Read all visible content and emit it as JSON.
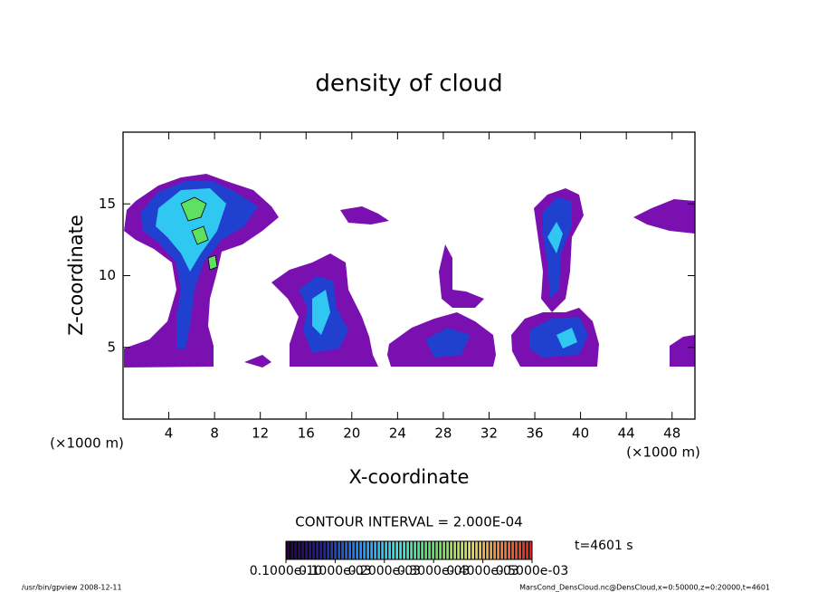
{
  "chart_data": {
    "type": "contour",
    "title": "density of cloud",
    "x_label": "X-coordinate",
    "y_label": "Z-coordinate",
    "x_unit": "(×1000 m)",
    "y_unit": "(×1000 m)",
    "xlim": [
      0,
      50
    ],
    "ylim": [
      0,
      20
    ],
    "xticks": [
      4,
      8,
      12,
      16,
      20,
      24,
      28,
      32,
      36,
      40,
      44,
      48
    ],
    "yticks": [
      5,
      10,
      15
    ],
    "contour_interval": "CONTOUR INTERVAL = 2.000E-04",
    "time": "t=4601 s",
    "colorbar": {
      "lim": [
        0,
        0.0005
      ],
      "ticks": [
        {
          "value": 1e-11,
          "label": "0.1000e-10"
        },
        {
          "value": 0.0001,
          "label": "0.1000e-03"
        },
        {
          "value": 0.0002,
          "label": "0.2000e-03"
        },
        {
          "value": 0.0003,
          "label": "0.3000e-03"
        },
        {
          "value": 0.0004,
          "label": "0.4000e-03"
        },
        {
          "value": 0.0005,
          "label": "0.5000e-03"
        }
      ]
    }
  },
  "footer": {
    "left": "/usr/bin/gpview  2008-12-11",
    "right": "MarsCond_DensCloud.nc@DensCloud,x=0:50000,z=0:20000,t=4601"
  }
}
